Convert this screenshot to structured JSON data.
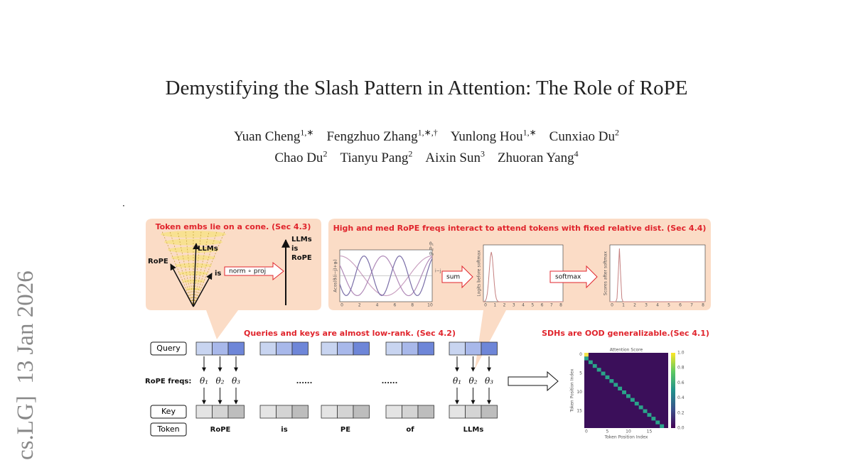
{
  "header": {
    "title": "Demystifying the Slash Pattern in Attention: The Role of RoPE",
    "authors": [
      [
        {
          "name": "Yuan Cheng",
          "sup": "1,∗"
        },
        {
          "name": "Fengzhuo Zhang",
          "sup": "1,∗,†"
        },
        {
          "name": "Yunlong Hou",
          "sup": "1,∗"
        },
        {
          "name": "Cunxiao Du",
          "sup": "2"
        }
      ],
      [
        {
          "name": "Chao Du",
          "sup": "2"
        },
        {
          "name": "Tianyu Pang",
          "sup": "2"
        },
        {
          "name": "Aixin Sun",
          "sup": "3"
        },
        {
          "name": "Zhuoran Yang",
          "sup": "4"
        }
      ]
    ]
  },
  "side_stamp": "cs.LG]  13 Jan 2026",
  "dot": ".",
  "figure": {
    "cone_panel": {
      "caption": "Token embs lie on a cone. (Sec 4.3)",
      "left_labels": [
        "RoPE",
        "LLMs",
        "is"
      ],
      "operation": "norm ∘ proj",
      "right_labels": [
        "LLMs",
        "is",
        "RoPE"
      ]
    },
    "freq_panel": {
      "caption": "High and med RoPE freqs interact to attend tokens with fixed relative dist. (Sec 4.4)",
      "plot1": {
        "ylabel": "Acos(θₗ(i−j)+φₗ)",
        "xlabel": "i−j",
        "legend": [
          "θ₁",
          "θ₂",
          "θ₃"
        ],
        "xticks": [
          "0",
          "2",
          "4",
          "6",
          "8",
          "10"
        ]
      },
      "sum": "sum",
      "plot2": {
        "ylabel": "Logits before softmax",
        "xticks": [
          "0",
          "1",
          "2",
          "3",
          "4",
          "5",
          "6",
          "7",
          "8"
        ]
      },
      "softmax": "softmax",
      "plot3": {
        "ylabel": "Scores after softmax",
        "xticks": [
          "0",
          "1",
          "2",
          "3",
          "4",
          "5",
          "6",
          "7",
          "8"
        ]
      }
    },
    "lowrank_caption": "Queries and keys are almost low-rank. (Sec 4.2)",
    "query": "Query",
    "rope_freqs": "RoPE freqs:",
    "thetas": [
      "θ₁",
      "θ₂",
      "θ₃"
    ],
    "ellipses": [
      "......",
      "......"
    ],
    "key": "Key",
    "token": "Token",
    "tokens": [
      "RoPE",
      "is",
      "PE",
      "of",
      "LLMs"
    ],
    "ood_caption": "SDHs are OOD generalizable.(Sec 4.1)",
    "heatmap": {
      "title": "Attention Score",
      "xlabel": "Token Position Index",
      "ylabel": "Token Position Index",
      "ticks": [
        "0",
        "5",
        "10",
        "15"
      ],
      "colorbar": [
        "1.0",
        "0.8",
        "0.6",
        "0.4",
        "0.2",
        "0.0"
      ]
    }
  }
}
